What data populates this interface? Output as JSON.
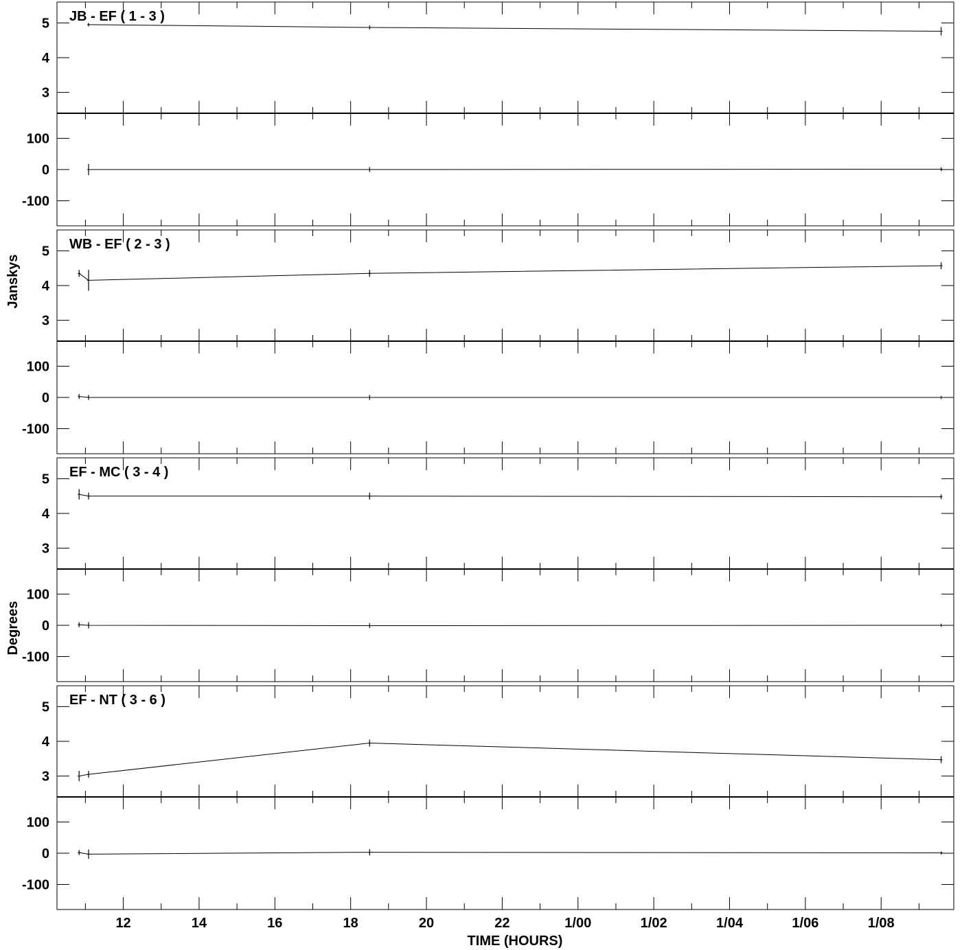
{
  "chart_data": {
    "type": "line",
    "xlabel": "TIME (HOURS)",
    "ylabels": [
      "Janskys",
      "Degrees"
    ],
    "x_tick_labels": [
      "12",
      "14",
      "16",
      "18",
      "20",
      "22",
      "1/00",
      "1/02",
      "1/04",
      "1/06",
      "1/08"
    ],
    "xlim": [
      "10:15",
      "33:55"
    ],
    "amp_ylim": [
      2.4,
      5.6
    ],
    "amp_ticks": [
      3,
      4,
      5
    ],
    "phase_ylim": [
      -180,
      180
    ],
    "phase_ticks": [
      -100,
      0,
      100
    ],
    "panels": [
      {
        "title": "JB - EF ( 1 - 3 )",
        "amplitude": {
          "x": [
            "11:05",
            "18:30",
            "33:35"
          ],
          "y": [
            4.95,
            4.87,
            4.76
          ],
          "err": [
            0.05,
            0.06,
            0.12
          ]
        },
        "phase": {
          "x": [
            "11:05",
            "18:30",
            "33:35"
          ],
          "y": [
            0,
            0,
            1
          ],
          "err": [
            18,
            8,
            6
          ]
        }
      },
      {
        "title": "WB - EF ( 2 - 3 )",
        "amplitude": {
          "x": [
            "10:50",
            "11:05",
            "18:30",
            "33:35"
          ],
          "y": [
            4.35,
            4.15,
            4.35,
            4.57
          ],
          "err": [
            0.1,
            0.3,
            0.1,
            0.1
          ]
        },
        "phase": {
          "x": [
            "10:50",
            "11:05",
            "18:30",
            "33:35"
          ],
          "y": [
            3,
            0,
            0,
            0
          ],
          "err": [
            8,
            8,
            8,
            5
          ]
        }
      },
      {
        "title": "EF - MC ( 3 - 4 )",
        "amplitude": {
          "x": [
            "10:50",
            "11:05",
            "18:30",
            "33:35"
          ],
          "y": [
            4.55,
            4.5,
            4.5,
            4.48
          ],
          "err": [
            0.15,
            0.1,
            0.1,
            0.07
          ]
        },
        "phase": {
          "x": [
            "10:50",
            "11:05",
            "18:30",
            "33:35"
          ],
          "y": [
            2,
            0,
            -1,
            0
          ],
          "err": [
            8,
            10,
            8,
            5
          ]
        }
      },
      {
        "title": "EF - NT ( 3 - 6 )",
        "amplitude": {
          "x": [
            "10:50",
            "11:05",
            "18:30",
            "33:35"
          ],
          "y": [
            3.0,
            3.05,
            3.95,
            3.47
          ],
          "err": [
            0.15,
            0.1,
            0.1,
            0.1
          ]
        },
        "phase": {
          "x": [
            "10:50",
            "11:05",
            "18:30",
            "33:35"
          ],
          "y": [
            2,
            -3,
            3,
            1
          ],
          "err": [
            8,
            15,
            10,
            5
          ]
        }
      }
    ]
  }
}
